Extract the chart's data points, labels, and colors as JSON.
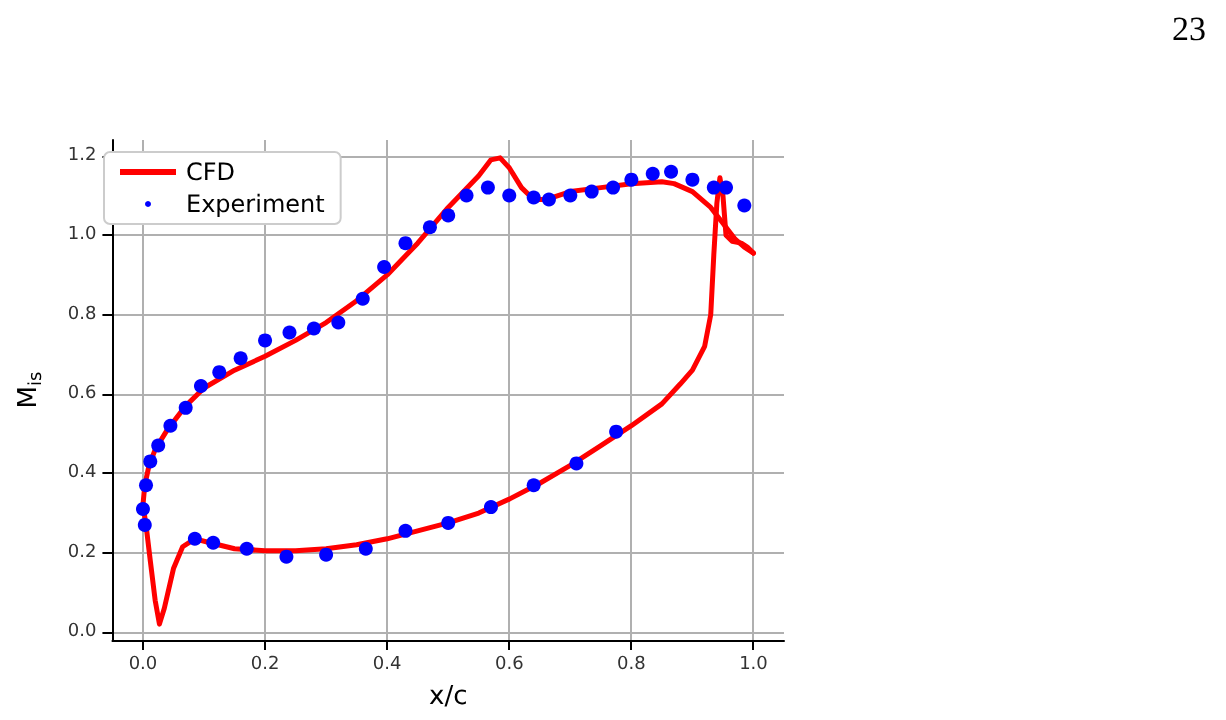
{
  "chart_data": {
    "type": "line",
    "xlabel": "x/c",
    "ylabel": "M$_{is}$",
    "annotations": [
      "23"
    ],
    "xlim": [
      -0.05,
      1.05
    ],
    "ylim": [
      -0.02,
      1.24
    ],
    "xticks": [
      {
        "value": 0,
        "label": "0.0"
      },
      {
        "value": 0.2,
        "label": "0.2"
      },
      {
        "value": 0.4,
        "label": "0.4"
      },
      {
        "value": 0.6,
        "label": "0.6"
      },
      {
        "value": 0.8,
        "label": "0.8"
      },
      {
        "value": 1,
        "label": "1.0"
      }
    ],
    "yticks": [
      {
        "value": 0,
        "label": "0.0"
      },
      {
        "value": 0.2,
        "label": "0.2"
      },
      {
        "value": 0.4,
        "label": "0.4"
      },
      {
        "value": 0.6,
        "label": "0.6"
      },
      {
        "value": 0.8,
        "label": "0.8"
      },
      {
        "value": 1,
        "label": "1.0"
      },
      {
        "value": 1.2,
        "label": "1.2"
      }
    ],
    "grid": true,
    "legend": "top left",
    "series": [
      {
        "name": "CFD",
        "color": "#ff0000",
        "marker": "none",
        "line_style": "solid",
        "x": [
          1.0,
          0.985,
          0.97,
          0.96,
          0.95,
          0.93,
          0.9,
          0.87,
          0.85,
          0.8,
          0.75,
          0.7,
          0.68,
          0.66,
          0.64,
          0.62,
          0.6,
          0.585,
          0.57,
          0.55,
          0.5,
          0.45,
          0.4,
          0.35,
          0.3,
          0.25,
          0.2,
          0.15,
          0.1,
          0.07,
          0.04,
          0.02,
          0.01,
          0.003,
          0.0
        ],
        "values": [
          0.955,
          0.97,
          0.99,
          1.01,
          1.03,
          1.07,
          1.11,
          1.13,
          1.135,
          1.13,
          1.12,
          1.11,
          1.1,
          1.09,
          1.09,
          1.12,
          1.17,
          1.195,
          1.19,
          1.15,
          1.07,
          0.98,
          0.9,
          0.835,
          0.78,
          0.735,
          0.695,
          0.66,
          0.615,
          0.57,
          0.51,
          0.46,
          0.42,
          0.37,
          0.32
        ]
      },
      {
        "color": "#ff0000",
        "marker": "none",
        "line_style": "solid",
        "x": [
          0.0,
          0.005,
          0.012,
          0.02,
          0.027,
          0.035,
          0.05,
          0.065,
          0.085,
          0.11,
          0.15,
          0.2,
          0.25,
          0.3,
          0.35,
          0.4,
          0.45,
          0.5,
          0.55,
          0.6,
          0.65,
          0.7,
          0.75,
          0.8,
          0.85,
          0.88,
          0.9,
          0.92,
          0.93,
          0.935,
          0.94,
          0.945,
          0.95,
          0.955,
          0.965,
          0.98,
          0.99,
          1.0
        ],
        "values": [
          0.32,
          0.27,
          0.18,
          0.08,
          0.02,
          0.06,
          0.16,
          0.215,
          0.235,
          0.225,
          0.21,
          0.205,
          0.205,
          0.21,
          0.22,
          0.235,
          0.255,
          0.275,
          0.3,
          0.335,
          0.375,
          0.42,
          0.47,
          0.52,
          0.575,
          0.625,
          0.66,
          0.72,
          0.8,
          0.95,
          1.08,
          1.145,
          1.1,
          1.0,
          0.985,
          0.98,
          0.97,
          0.955
        ]
      },
      {
        "name": "Experiment",
        "type": "scatter",
        "color": "#0000ff",
        "marker": "circle",
        "x": [
          0.0,
          0.005,
          0.012,
          0.025,
          0.045,
          0.07,
          0.095,
          0.125,
          0.16,
          0.2,
          0.24,
          0.28,
          0.32,
          0.36,
          0.395,
          0.43,
          0.47,
          0.5,
          0.53,
          0.565,
          0.6,
          0.64,
          0.665,
          0.7,
          0.735,
          0.77,
          0.8,
          0.835,
          0.865,
          0.9,
          0.935,
          0.955,
          0.985,
          0.003,
          0.085,
          0.115,
          0.17,
          0.235,
          0.3,
          0.365,
          0.43,
          0.5,
          0.57,
          0.64,
          0.71,
          0.775
        ],
        "values": [
          0.31,
          0.37,
          0.43,
          0.47,
          0.52,
          0.565,
          0.62,
          0.655,
          0.69,
          0.735,
          0.755,
          0.765,
          0.78,
          0.84,
          0.92,
          0.98,
          1.02,
          1.05,
          1.1,
          1.12,
          1.1,
          1.095,
          1.09,
          1.1,
          1.11,
          1.12,
          1.14,
          1.155,
          1.16,
          1.14,
          1.12,
          1.12,
          1.075,
          0.27,
          0.235,
          0.225,
          0.21,
          0.19,
          0.195,
          0.21,
          0.255,
          0.275,
          0.315,
          0.37,
          0.425,
          0.505
        ]
      }
    ]
  }
}
